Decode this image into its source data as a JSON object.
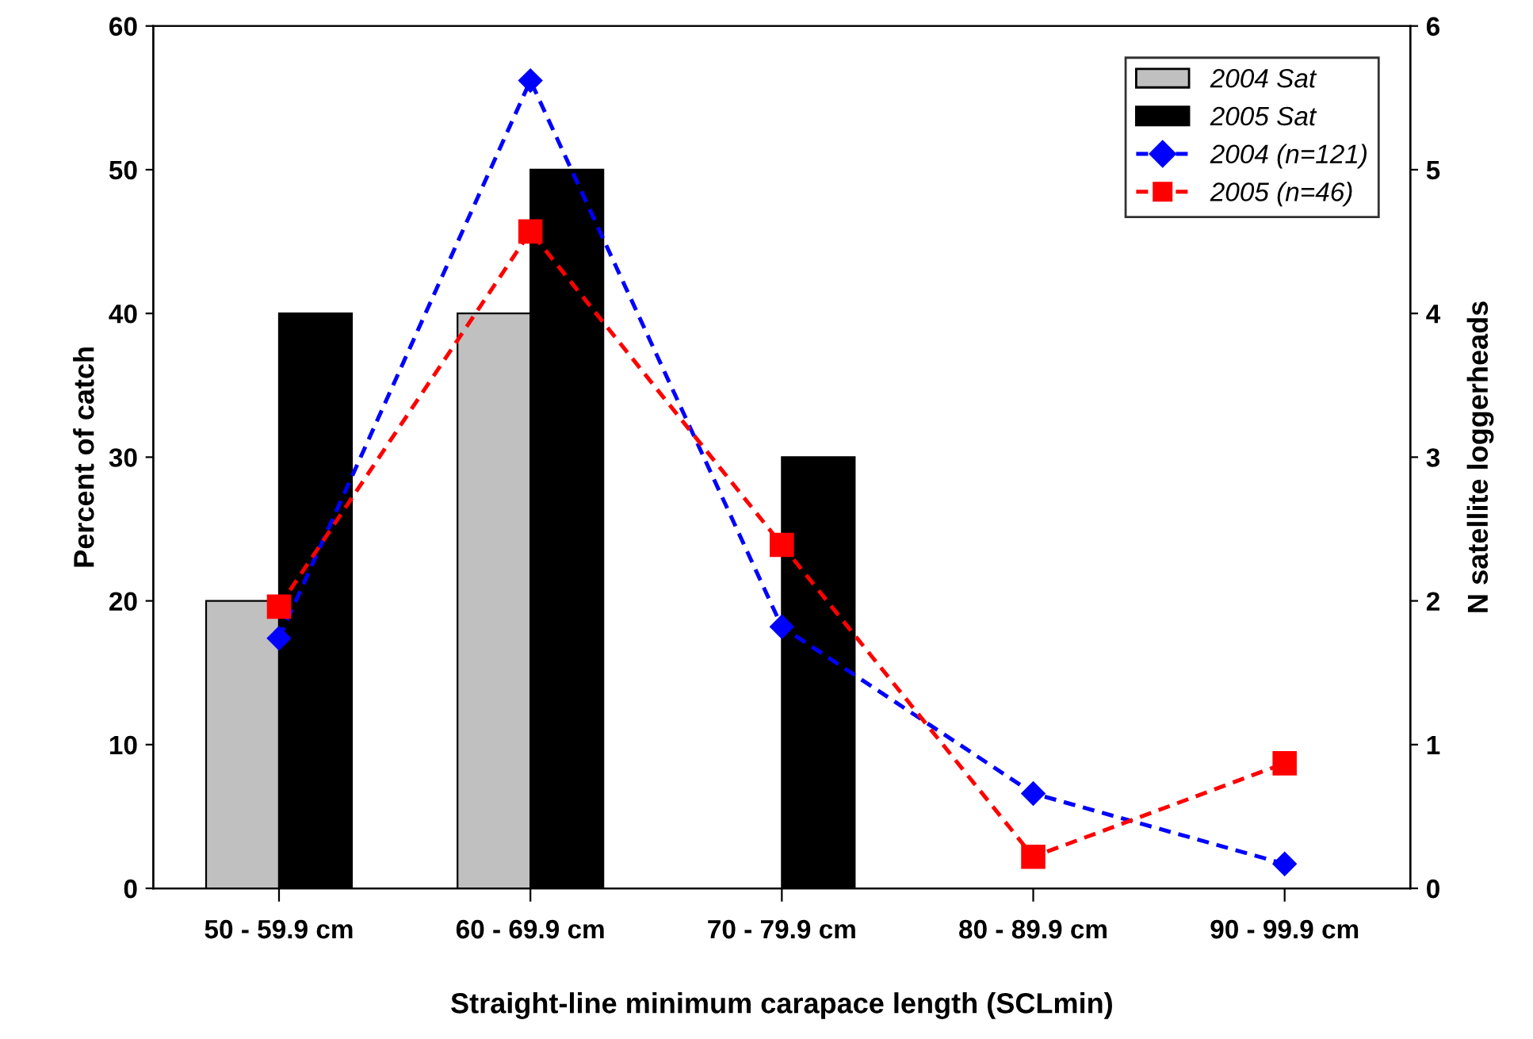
{
  "chart_data": {
    "type": "bar",
    "xlabel": "Straight-line minimum carapace length (SCLmin)",
    "ylabel": "Percent of catch",
    "y2label": "N satellite loggerheads",
    "categories": [
      "50 - 59.9 cm",
      "60 - 69.9 cm",
      "70 - 79.9 cm",
      "80 - 89.9 cm",
      "90 - 99.9 cm"
    ],
    "series": [
      {
        "name": "2004 Sat",
        "axis": "y2",
        "color": "#c0c0c0",
        "values": [
          2,
          4,
          null,
          null,
          null
        ]
      },
      {
        "name": "2005 Sat",
        "axis": "y2",
        "color": "#000000",
        "values": [
          4,
          5,
          3,
          null,
          null
        ]
      },
      {
        "name": "2004 (n=121)",
        "type": "line",
        "color": "#0000ff",
        "marker": "diamond",
        "line_style": "dashed",
        "values": [
          17.4,
          56.2,
          18.2,
          6.6,
          1.7
        ]
      },
      {
        "name": "2005 (n=46)",
        "type": "line",
        "color": "#ff0000",
        "marker": "square",
        "line_style": "dashed",
        "values": [
          19.6,
          45.7,
          23.9,
          2.2,
          8.7
        ]
      }
    ],
    "ylim": [
      0,
      60
    ],
    "yticks": [
      0,
      10,
      20,
      30,
      40,
      50,
      60
    ],
    "y2lim": [
      0,
      6
    ],
    "y2ticks": [
      0,
      1,
      2,
      3,
      4,
      5,
      6
    ],
    "legend": "top right",
    "grid": false
  }
}
